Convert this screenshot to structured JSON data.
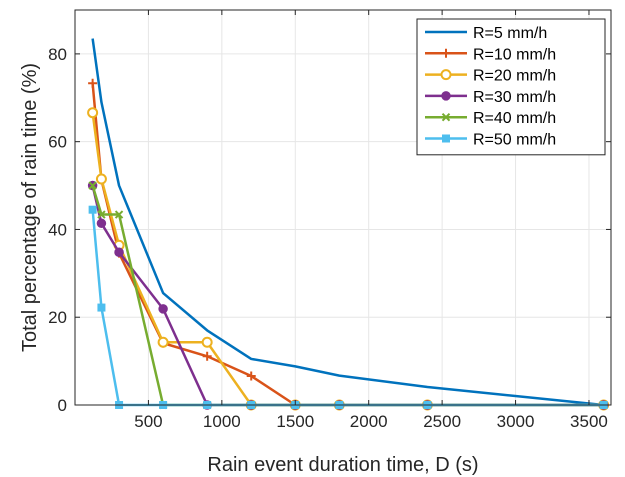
{
  "chart_data": {
    "type": "line",
    "title": "",
    "xlabel": "Rain event duration time, D (s)",
    "ylabel": "Total percentage of rain time (%)",
    "xlim": [
      0,
      3650
    ],
    "ylim": [
      0,
      90
    ],
    "xticks": [
      500,
      1000,
      1500,
      2000,
      2500,
      3000,
      3500
    ],
    "yticks": [
      0,
      20,
      40,
      60,
      80
    ],
    "grid": true,
    "legend_position": "top-right",
    "series": [
      {
        "name": "R=5 mm/h",
        "color": "#0072BD",
        "marker": "none",
        "x": [
          120,
          180,
          300,
          600,
          900,
          1200,
          1500,
          1800,
          2400,
          3600
        ],
        "y": [
          83.5,
          69,
          50,
          25.5,
          17,
          10.5,
          8.8,
          6.7,
          4.1,
          0
        ]
      },
      {
        "name": "R=10 mm/h",
        "color": "#D95319",
        "marker": "plus",
        "x": [
          120,
          180,
          300,
          600,
          900,
          1200,
          1500,
          1800,
          2400,
          3600
        ],
        "y": [
          73.3,
          51.3,
          34.6,
          14.1,
          11.1,
          6.6,
          0,
          0,
          0,
          0
        ]
      },
      {
        "name": "R=20 mm/h",
        "color": "#EDB120",
        "marker": "circle",
        "x": [
          120,
          180,
          300,
          600,
          900,
          1200,
          1500,
          1800,
          2400,
          3600
        ],
        "y": [
          66.6,
          51.5,
          36.4,
          14.3,
          14.3,
          0,
          0,
          0,
          0,
          0
        ]
      },
      {
        "name": "R=30 mm/h",
        "color": "#7E2F8E",
        "marker": "circle-filled",
        "x": [
          120,
          180,
          300,
          600,
          900,
          1200,
          1500,
          1800,
          2400,
          3600
        ],
        "y": [
          50,
          41.4,
          34.8,
          21.9,
          0,
          0,
          0,
          0,
          0,
          0
        ]
      },
      {
        "name": "R=40 mm/h",
        "color": "#77AC30",
        "marker": "x",
        "x": [
          120,
          180,
          300,
          600,
          900,
          1200,
          1500,
          1800,
          2400,
          3600
        ],
        "y": [
          50,
          43.4,
          43.4,
          0,
          0,
          0,
          0,
          0,
          0,
          0
        ]
      },
      {
        "name": "R=50 mm/h",
        "color": "#4DBEEE",
        "marker": "square",
        "x": [
          120,
          180,
          300,
          600,
          900,
          1200,
          1500,
          1800,
          2400,
          3600
        ],
        "y": [
          44.5,
          22.2,
          0,
          0,
          0,
          0,
          0,
          0,
          0,
          0
        ]
      }
    ]
  }
}
